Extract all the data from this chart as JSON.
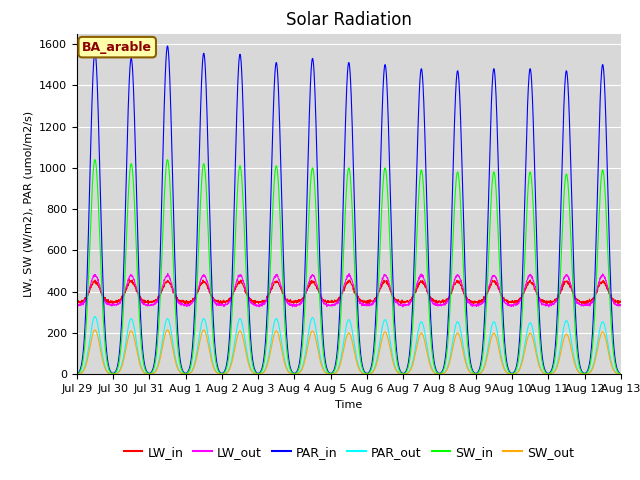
{
  "title": "Solar Radiation",
  "ylabel": "LW, SW (W/m2), PAR (umol/m2/s)",
  "xlabel": "Time",
  "annotation": "BA_arable",
  "ylim": [
    0,
    1650
  ],
  "xtick_labels": [
    "Jul 29",
    "Jul 30",
    "Jul 31",
    "Aug 1",
    "Aug 2",
    "Aug 3",
    "Aug 4",
    "Aug 5",
    "Aug 6",
    "Aug 7",
    "Aug 8",
    "Aug 9",
    "Aug 10",
    "Aug 11",
    "Aug 12",
    "Aug 13"
  ],
  "colors": {
    "LW_in": "#ff0000",
    "LW_out": "#ff00ff",
    "PAR_in": "#0000ff",
    "PAR_out": "#00ffff",
    "SW_in": "#00ff00",
    "SW_out": "#ffaa00"
  },
  "plot_bg": "#d8d8d8",
  "fig_bg": "#ffffff",
  "grid_color": "#ffffff",
  "lw_baseline": 350,
  "lw_day_amplitude": 100,
  "lw_out_baseline": 335,
  "lw_out_day_amplitude": 145,
  "par_in_peaks": [
    1560,
    1530,
    1590,
    1555,
    1550,
    1510,
    1530,
    1510,
    1500,
    1480,
    1470,
    1480,
    1480,
    1470,
    1500
  ],
  "sw_in_peaks": [
    1040,
    1020,
    1040,
    1020,
    1010,
    1010,
    1000,
    1000,
    1000,
    990,
    980,
    980,
    980,
    970,
    990
  ],
  "par_out_peaks": [
    280,
    270,
    270,
    270,
    270,
    270,
    275,
    265,
    265,
    255,
    255,
    255,
    250,
    260,
    255
  ],
  "sw_out_peaks": [
    215,
    210,
    215,
    215,
    210,
    210,
    210,
    200,
    205,
    200,
    200,
    200,
    200,
    195,
    205
  ],
  "n_days": 15,
  "pts_per_day": 144,
  "title_fontsize": 12,
  "axis_fontsize": 8,
  "tick_fontsize": 8,
  "legend_fontsize": 9
}
